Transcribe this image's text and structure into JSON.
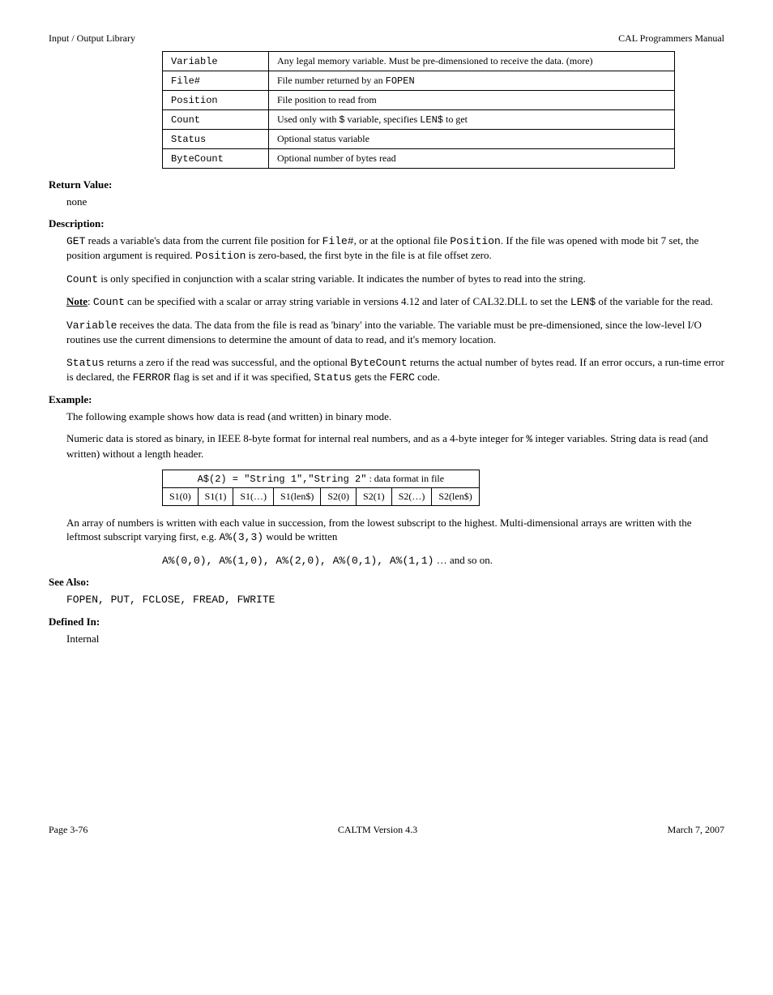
{
  "header": {
    "left": "Input / Output Library",
    "right": "CAL Programmers Manual"
  },
  "args_table": {
    "col_widths": [
      "110px",
      "480px"
    ],
    "rows": [
      [
        {
          "label": "Variable",
          "desc_html": "Any legal memory variable. Must be pre-dimensioned to receive the data. (more)"
        },
        {
          "label": "File#",
          "desc_html": "File number returned by an <span class='mono'>FOPEN</span>"
        },
        {
          "label": "Position",
          "desc_html": "File position to read from"
        },
        {
          "label": "Count",
          "desc_html": "Used only with <span class='mono'>$</span> variable, specifies <span class='mono'>LEN$</span> to get"
        },
        {
          "label": "Status",
          "desc_html": "Optional status variable"
        },
        {
          "label": "ByteCount",
          "desc_html": "Optional number of bytes read"
        }
      ]
    ]
  },
  "return_label": "Return Value:",
  "return_text": "none",
  "description_label": "Description:",
  "description_text_html": "<span class='mono'>GET</span> reads a variable's data from the current file position for <span class='mono'>File#</span>, or at the optional file <span class='mono'>Position</span>. If the file was opened with mode bit 7 set, the position argument is required. <span class='mono'>Position</span> is zero-based, the first byte in the file is at file offset zero.",
  "count_text_html": "<span class='mono'>Count</span> is only specified in conjunction with a scalar string variable. It indicates the number of bytes to read into the string.",
  "note_label": "Note",
  "note_text_html": ": <span class='mono'>Count</span> can be specified with a scalar or array string variable in versions 4.12 and later of CAL32.DLL to set the <span class='mono'>LEN$</span> of the variable for the read.",
  "variable_text_html": "<span class='mono'>Variable</span> receives the data. The data from the file is read as 'binary' into the variable. The variable must be pre-dimensioned, since the low-level I/O routines use the current dimensions to determine the amount of data to read, and it's memory location.",
  "status_text_html": "<span class='mono'>Status</span> returns a zero if the read was successful, and the optional <span class='mono'>ByteCount</span> returns the actual number of bytes read. If an error occurs, a run-time error is declared, the <span class='mono'>FERROR</span> flag is set and if it was specified, <span class='mono'>Status</span> gets the <span class='mono'>FERC</span> code.",
  "example_label": "Example:",
  "example_intro": "The following example shows how data is read (and written) in binary mode.",
  "example_text_html": "Numeric data is stored as binary, in IEEE 8-byte format for internal real numbers, and as a 4-byte integer for <span class='mono'>%</span> integer variables. String data is read (and written) without a length header.",
  "format_table": {
    "title": "<span class='mono'>A$(2) = \"String 1\",\"String 2\"</span> : data format in file",
    "cells": [
      "S1(0)",
      "S1(1)",
      "S1(…)",
      "S1(len$)",
      "S2(0)",
      "S2(1)",
      "S2(…)",
      "S2(len$)"
    ]
  },
  "array_text_html": "An array of numbers is written with each value in succession, from the lowest subscript to the highest. Multi-dimensional arrays are written with the leftmost subscript varying first, e.g. <span class='mono'>A%(3,3)</span> would be written",
  "array_order_html": "<span class='mono'>A%(0,0), A%(1,0), A%(2,0), A%(0,1), A%(1,1)</span> … and so on.",
  "see_also_label": "See Also:",
  "see_also_text_html": "<span class='mono'>FOPEN, PUT, FCLOSE, FREAD, FWRITE</span>",
  "defined_label": "Defined In:",
  "defined_text": "Internal",
  "footer": {
    "left": "Page 3-76",
    "center": "CALTM Version 4.3",
    "right": "March 7, 2007"
  }
}
